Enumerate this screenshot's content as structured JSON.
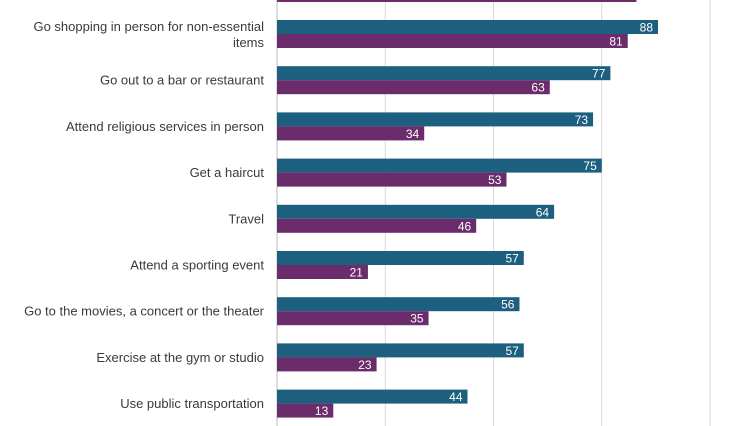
{
  "chart_data": {
    "type": "bar",
    "orientation": "horizontal",
    "categories": [
      [
        "Go shopping in person for non-essential",
        "items"
      ],
      [
        "Go out to a bar or restaurant"
      ],
      [
        "Attend religious services in person"
      ],
      [
        "Get a haircut"
      ],
      [
        "Travel"
      ],
      [
        "Attend a sporting event"
      ],
      [
        "Go to the movies, a concert or the theater"
      ],
      [
        "Exercise at the gym or studio"
      ],
      [
        "Use public transportation"
      ]
    ],
    "series": [
      {
        "values": [
          88,
          77,
          73,
          75,
          64,
          57,
          56,
          57,
          44
        ],
        "color": "#1c5f7f"
      },
      {
        "values": [
          81,
          63,
          34,
          53,
          46,
          21,
          35,
          23,
          13
        ],
        "color": "#6a2c6b"
      }
    ],
    "xlim": [
      0,
      100
    ],
    "grid": true,
    "partial_bar_at_top": {
      "color": "#6a2c6b",
      "value": 83
    }
  }
}
